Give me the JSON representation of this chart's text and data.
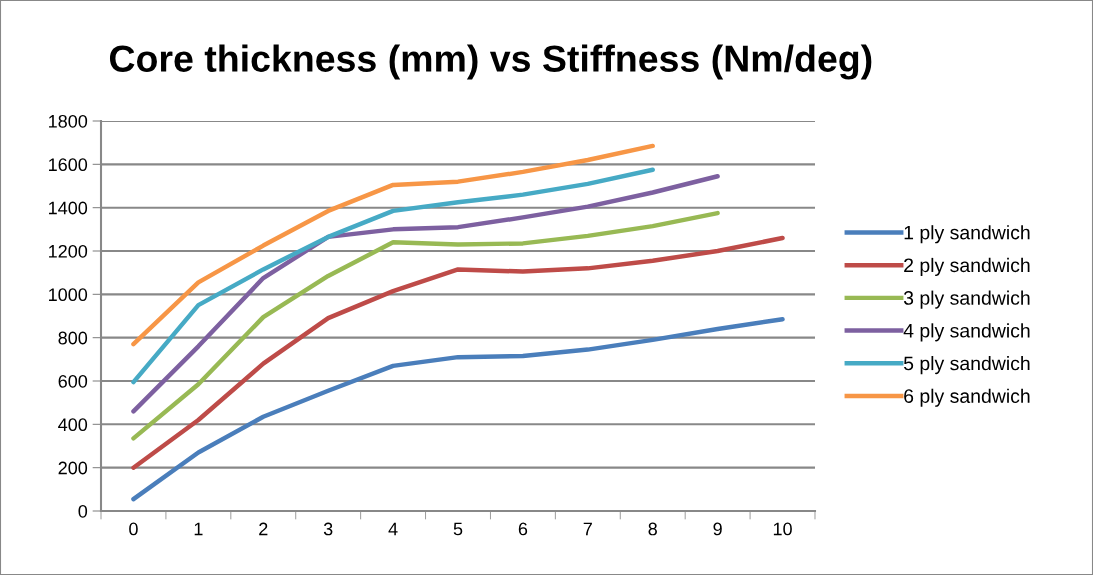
{
  "chart_data": {
    "type": "line",
    "title": "Core thickness (mm) vs Stiffness (Nm/deg)",
    "categories": [
      "0",
      "1",
      "2",
      "3",
      "4",
      "5",
      "6",
      "7",
      "8",
      "9",
      "10"
    ],
    "series": [
      {
        "name": "1 ply sandwich",
        "color": "#4a7ebb",
        "values": [
          55,
          270,
          435,
          555,
          670,
          710,
          715,
          745,
          790,
          840,
          885
        ]
      },
      {
        "name": "2 ply sandwich",
        "color": "#be4b48",
        "values": [
          200,
          420,
          680,
          890,
          1015,
          1115,
          1105,
          1120,
          1155,
          1200,
          1260
        ]
      },
      {
        "name": "3 ply sandwich",
        "color": "#98b954",
        "values": [
          335,
          585,
          895,
          1085,
          1240,
          1230,
          1235,
          1270,
          1315,
          1375,
          null
        ]
      },
      {
        "name": "4 ply sandwich",
        "color": "#7d60a0",
        "values": [
          460,
          760,
          1075,
          1265,
          1300,
          1310,
          1355,
          1405,
          1470,
          1545,
          null
        ]
      },
      {
        "name": "5 ply sandwich",
        "color": "#46aac5",
        "values": [
          595,
          950,
          1115,
          1265,
          1385,
          1425,
          1460,
          1510,
          1575,
          null,
          null
        ]
      },
      {
        "name": "6 ply sandwich",
        "color": "#f79646",
        "values": [
          770,
          1055,
          1225,
          1385,
          1505,
          1520,
          1565,
          1620,
          1685,
          null,
          null
        ]
      }
    ],
    "ylim": [
      0,
      1800
    ],
    "yticks": [
      0,
      200,
      400,
      600,
      800,
      1000,
      1200,
      1400,
      1600,
      1800
    ],
    "grid": "y",
    "legend": "right",
    "marker": "none",
    "line_style": "solid"
  }
}
